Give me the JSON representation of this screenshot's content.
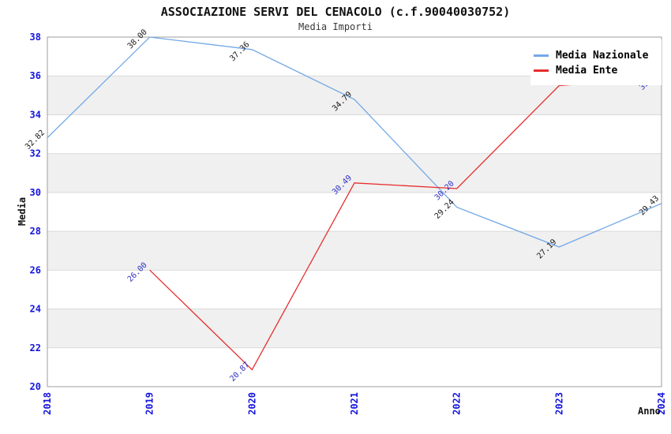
{
  "chart_data": {
    "type": "line",
    "title": "ASSOCIAZIONE SERVI DEL CENACOLO (c.f.90040030752)",
    "subtitle": "Media Importi",
    "xlabel": "Anno",
    "ylabel": "Media",
    "x": [
      2018,
      2019,
      2020,
      2021,
      2022,
      2023,
      2024
    ],
    "ylim": [
      20,
      38
    ],
    "ytick_step": 2,
    "grid": true,
    "legend_position": "top-right",
    "band_color": "#f0f0f0",
    "grid_color": "#d9d9d9",
    "border_color": "#9e9e9e",
    "tick_color": "#1515dd",
    "series": [
      {
        "name": "Media Nazionale",
        "color": "#74a9e6",
        "label_color": "#1a1a1a",
        "values": [
          32.82,
          38.0,
          37.36,
          34.79,
          29.24,
          27.19,
          29.43
        ],
        "labels": [
          "32.82",
          "38.00",
          "37.36",
          "34.79",
          "29.24",
          "27.19",
          "29.43"
        ]
      },
      {
        "name": "Media Ente",
        "color": "#e62e2e",
        "label_color": "#3232c8",
        "values": [
          null,
          26.0,
          20.87,
          30.49,
          30.2,
          35.5,
          35.88
        ],
        "labels": [
          null,
          "26.00",
          "20.87",
          "30.49",
          "30.20",
          null,
          "35.88"
        ]
      }
    ]
  }
}
